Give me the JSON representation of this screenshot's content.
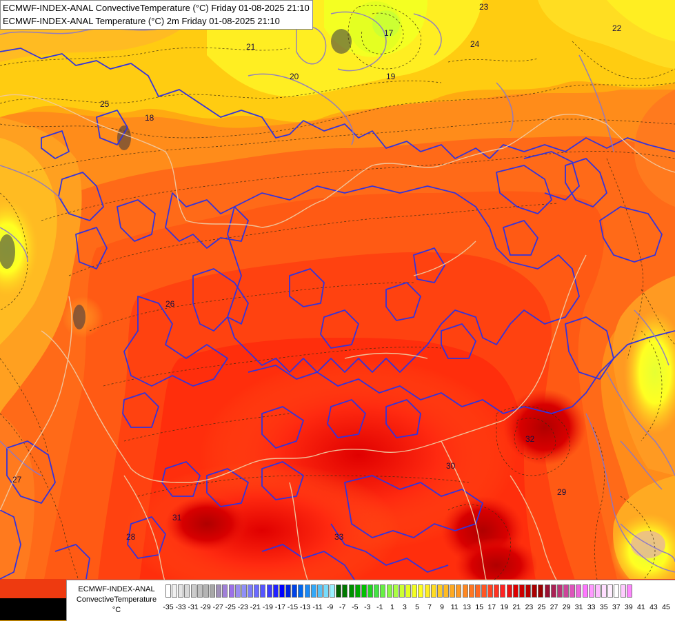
{
  "title": {
    "line1": "ECMWF-INDEX-ANAL ConvectiveTemperature (°C) Friday 01-08-2025 21:10",
    "line2": "ECMWF-INDEX-ANAL Temperature (°C) 2m Friday 01-08-2025 21:10"
  },
  "legend": {
    "line1": "ECMWF-INDEX-ANAL",
    "line2": "ConvectiveTemperature",
    "unit": "°C",
    "tick_labels": [
      "-35",
      "-33",
      "-31",
      "-29",
      "-27",
      "-25",
      "-23",
      "-21",
      "-19",
      "-17",
      "-15",
      "-13",
      "-11",
      "-9",
      "-7",
      "-5",
      "-3",
      "-1",
      "1",
      "3",
      "5",
      "7",
      "9",
      "11",
      "13",
      "15",
      "17",
      "19",
      "21",
      "23",
      "25",
      "27",
      "29",
      "31",
      "33",
      "35",
      "37",
      "39",
      "41",
      "43",
      "45"
    ],
    "colors": [
      "#ffffff",
      "#f0f0f0",
      "#e4e4e4",
      "#d8d8d8",
      "#cccccc",
      "#c0c0c0",
      "#b4b4b4",
      "#a8a8a8",
      "#a090b8",
      "#a080d8",
      "#9c70e8",
      "#9a8cf0",
      "#8f8ff8",
      "#7c7cf8",
      "#6a6aff",
      "#5555ff",
      "#3c3cff",
      "#2222ff",
      "#0000ff",
      "#0022e0",
      "#0044e8",
      "#0066ee",
      "#1a88f4",
      "#33a8f8",
      "#55c4fa",
      "#77dcfc",
      "#99f0ff",
      "#006000",
      "#007800",
      "#009000",
      "#00a800",
      "#00c000",
      "#22d422",
      "#44e444",
      "#66f044",
      "#88f844",
      "#aaff44",
      "#ccff33",
      "#e4ff22",
      "#f4ff22",
      "#ffff22",
      "#ffee22",
      "#ffdd22",
      "#ffcc22",
      "#ffbb22",
      "#ffaa22",
      "#ff9922",
      "#ff8822",
      "#ff7722",
      "#ff6622",
      "#ff5522",
      "#ff4422",
      "#ff3322",
      "#ff2222",
      "#ee1111",
      "#dd0000",
      "#cc0000",
      "#bb0000",
      "#aa0000",
      "#990000",
      "#991133",
      "#aa2255",
      "#bb3377",
      "#cc4499",
      "#dd55bb",
      "#ee66dd",
      "#ff77ff",
      "#ff99ff",
      "#ffbbff",
      "#ffddff",
      "#ffeeff",
      "#ffffff",
      "#ffccff",
      "#ff88ff"
    ]
  },
  "map_labels": [
    {
      "text": "23",
      "pos": "top-center"
    },
    {
      "text": "22",
      "pos": "top-right"
    },
    {
      "text": "21",
      "pos": "top-left"
    },
    {
      "text": "25",
      "pos": "upper-left"
    },
    {
      "text": "18",
      "pos": "left"
    },
    {
      "text": "20",
      "pos": "center"
    },
    {
      "text": "24",
      "pos": "upper-right"
    },
    {
      "text": "26",
      "pos": "left-middle"
    },
    {
      "text": "27",
      "pos": "lower-left"
    },
    {
      "text": "28",
      "pos": "bottom-left"
    },
    {
      "text": "29",
      "pos": "bottom-right"
    },
    {
      "text": "31",
      "pos": "bottom-left-center"
    },
    {
      "text": "32",
      "pos": "lower-right"
    },
    {
      "text": "33",
      "pos": "bottom-center"
    },
    {
      "text": "17",
      "pos": "upper"
    },
    {
      "text": "19",
      "pos": "upper-center"
    },
    {
      "text": "30",
      "pos": "lower-center"
    }
  ]
}
